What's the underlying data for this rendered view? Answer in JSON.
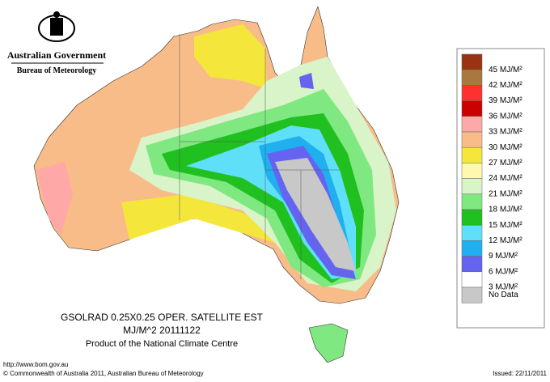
{
  "header": {
    "agency": "Australian Government",
    "bureau": "Bureau of Meteorology"
  },
  "product": {
    "line1": "GSOLRAD    0.25X0.25 OPER. SATELLITE EST",
    "line2": "MJ/M^2  20111122",
    "line3": "Product of the National Climate Centre"
  },
  "legend": {
    "items": [
      {
        "label": "45 MJ/M²",
        "color": "#993311"
      },
      {
        "label": "42 MJ/M²",
        "color": "#a8783f"
      },
      {
        "label": "39 MJ/M²",
        "color": "#ff3030"
      },
      {
        "label": "36 MJ/M²",
        "color": "#cc0000"
      },
      {
        "label": "33 MJ/M²",
        "color": "#ffa8a8"
      },
      {
        "label": "30 MJ/M²",
        "color": "#f8bc88"
      },
      {
        "label": "27 MJ/M²",
        "color": "#f5e63c"
      },
      {
        "label": "24 MJ/M²",
        "color": "#fff8b0"
      },
      {
        "label": "21 MJ/M²",
        "color": "#d8f4c8"
      },
      {
        "label": "18 MJ/M²",
        "color": "#80e880"
      },
      {
        "label": "15 MJ/M²",
        "color": "#20c020"
      },
      {
        "label": "12 MJ/M²",
        "color": "#60e0f8"
      },
      {
        "label": "9 MJ/M²",
        "color": "#20b0f0"
      },
      {
        "label": "6 MJ/M²",
        "color": "#6464f0"
      },
      {
        "label": "3 MJ/M²",
        "color": "#ffffff"
      }
    ],
    "no_data": {
      "label": "No Data",
      "color": "#c8c8c8"
    }
  },
  "footer": {
    "url": "http://www.bom.gov.au",
    "copyright": "© Commonwealth of Australia 2011, Australian Bureau of Meteorology",
    "issued": "Issued: 22/11/2011"
  }
}
